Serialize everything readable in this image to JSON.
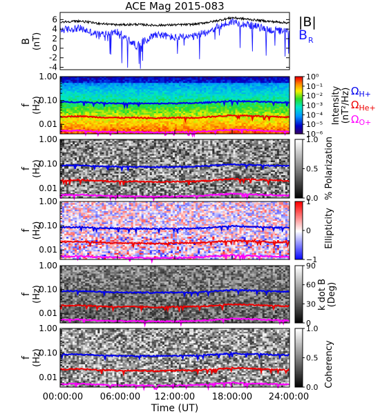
{
  "title": "ACE Mag 2015-083",
  "x_axis": {
    "label": "Time (UT)",
    "ticks": [
      "00:00:00",
      "06:00:00",
      "12:00:00",
      "18:00:00",
      "24:00:00"
    ],
    "range_hours": [
      0,
      24
    ]
  },
  "colors": {
    "B_total": "#000000",
    "B_R": "#1a1aff",
    "proton_gyro": "#0000ee",
    "helium_gyro": "#ee0000",
    "oxygen_gyro": "#ff00ff"
  },
  "chart_data": [
    {
      "type": "line",
      "panel": "magnetic-field",
      "ylabel": "B",
      "yunit": "(nT)",
      "ylim": [
        -4.5,
        7.5
      ],
      "yticks": [
        "-4",
        "-2",
        "0",
        "2",
        "4",
        "6"
      ],
      "x_hours": [
        0,
        2,
        4,
        6,
        8,
        10,
        12,
        14,
        16,
        18,
        20,
        22,
        24
      ],
      "series": [
        {
          "name": "|B|",
          "values": [
            5.5,
            5.7,
            5.2,
            4.9,
            5.0,
            4.8,
            4.9,
            5.0,
            5.6,
            6.4,
            6.0,
            5.6,
            5.3
          ]
        },
        {
          "name": "B",
          "subscript": "R",
          "values": [
            3.8,
            4.2,
            2.8,
            3.4,
            0.5,
            3.0,
            2.2,
            2.4,
            4.0,
            5.6,
            4.8,
            3.8,
            3.4
          ]
        }
      ],
      "legend": "right"
    },
    {
      "type": "heatmap",
      "panel": "intensity",
      "ylabel": "f",
      "yunit": "(Hz)",
      "yscale": "log",
      "ylim": [
        0.004,
        1.0
      ],
      "yticks": [
        "1.00",
        "0.10",
        "0.01"
      ],
      "colorbar_label": "Intensity",
      "colorbar_unit": "(nT²/Hz)",
      "colorbar_ticks": [
        "10⁰",
        "10⁻¹",
        "10⁻²",
        "10⁻³",
        "10⁻⁴",
        "10⁻⁵",
        "10⁻⁶"
      ],
      "colorbar_scale": "rainbow",
      "legend_entries": [
        "ΩH+",
        "ΩHe+",
        "ΩO+"
      ]
    },
    {
      "type": "heatmap",
      "panel": "polarization",
      "ylabel": "f",
      "yunit": "(Hz)",
      "yscale": "log",
      "yticks": [
        "1.00",
        "0.10",
        "0.01"
      ],
      "colorbar_label": "% Polarization",
      "colorbar_ticks": [
        "1.0",
        "0.5",
        "0.0"
      ],
      "colorbar_scale": "grayscale"
    },
    {
      "type": "heatmap",
      "panel": "ellipticity",
      "ylabel": "f",
      "yunit": "(Hz)",
      "yscale": "log",
      "yticks": [
        "1.00",
        "0.10",
        "0.01"
      ],
      "colorbar_label": "Ellipticity",
      "colorbar_ticks": [
        "1",
        "0",
        "−1"
      ],
      "colorbar_scale": "blue-white-red"
    },
    {
      "type": "heatmap",
      "panel": "wave-normal-angle",
      "ylabel": "f",
      "yunit": "(Hz)",
      "yscale": "log",
      "yticks": [
        "1.00",
        "0.10",
        "0.01"
      ],
      "colorbar_label": "k dot B",
      "colorbar_unit": "(Deg)",
      "colorbar_ticks": [
        "90",
        "60",
        "30",
        "0"
      ],
      "colorbar_scale": "grayscale"
    },
    {
      "type": "heatmap",
      "panel": "coherency",
      "ylabel": "f",
      "yunit": "(Hz)",
      "yscale": "log",
      "yticks": [
        "1.00",
        "0.10",
        "0.01"
      ],
      "colorbar_label": "Coherency",
      "colorbar_ticks": [
        "1.0",
        "0.5",
        "0.0"
      ],
      "colorbar_scale": "grayscale"
    }
  ],
  "gyrofrequency_lines": {
    "x_hours": [
      0,
      2,
      4,
      6,
      8,
      10,
      12,
      14,
      16,
      18,
      20,
      22,
      24
    ],
    "proton_hz": [
      0.085,
      0.087,
      0.08,
      0.076,
      0.075,
      0.074,
      0.076,
      0.077,
      0.085,
      0.095,
      0.09,
      0.085,
      0.082
    ],
    "helium_hz": [
      0.021,
      0.022,
      0.02,
      0.019,
      0.019,
      0.018,
      0.019,
      0.019,
      0.021,
      0.024,
      0.023,
      0.021,
      0.02
    ],
    "oxygen_hz": [
      0.0053,
      0.0055,
      0.005,
      0.0048,
      0.0047,
      0.0046,
      0.0047,
      0.0048,
      0.0053,
      0.006,
      0.0057,
      0.0053,
      0.0051
    ]
  }
}
